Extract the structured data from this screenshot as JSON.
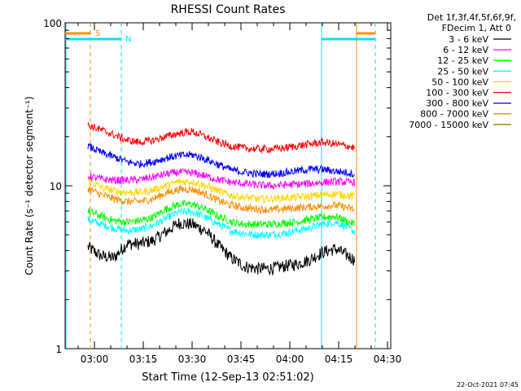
{
  "chart_data": {
    "type": "line",
    "title": "RHESSI Count Rates",
    "xlabel": "Start Time (12-Sep-13 02:51:02)",
    "ylabel": "Count Rate (s⁻¹ detector segment⁻¹)",
    "xlim": [
      "02:51",
      "04:31"
    ],
    "ylim": [
      1,
      100
    ],
    "yscale": "log",
    "x_ticks": [
      "03:00",
      "03:15",
      "03:30",
      "03:45",
      "04:00",
      "04:15",
      "04:30"
    ],
    "y_ticks": [
      "1",
      "10",
      "100"
    ],
    "grid": false,
    "legend_position": "outside-right",
    "legend_header": [
      "Det 1f,3f,4f,5f,6f,9f,",
      "FDecim 1, Att 0"
    ],
    "x_times": [
      "02:58",
      "03:02",
      "03:06",
      "03:10",
      "03:14",
      "03:18",
      "03:22",
      "03:26",
      "03:30",
      "03:34",
      "03:38",
      "03:42",
      "03:46",
      "03:50",
      "03:54",
      "03:58",
      "04:02",
      "04:06",
      "04:10",
      "04:14",
      "04:18",
      "04:20"
    ],
    "series": [
      {
        "name": "3 - 6 keV",
        "color": "#000000",
        "values": [
          4.2,
          3.7,
          3.6,
          4.4,
          4.4,
          4.6,
          5.2,
          5.9,
          5.8,
          5.3,
          4.3,
          3.6,
          3.2,
          3.1,
          3.1,
          3.2,
          3.3,
          3.5,
          3.9,
          4.1,
          3.7,
          3.5
        ]
      },
      {
        "name": "6 - 12 keV",
        "color": "#ff00ff",
        "values": [
          11.5,
          11.0,
          10.8,
          10.8,
          10.9,
          11.3,
          11.8,
          12.1,
          12.0,
          11.5,
          10.9,
          10.5,
          10.3,
          10.1,
          10.0,
          10.1,
          10.2,
          10.3,
          10.5,
          10.6,
          10.5,
          10.5
        ]
      },
      {
        "name": "12 - 25 keV",
        "color": "#00ff00",
        "values": [
          7.0,
          6.5,
          6.1,
          6.0,
          6.1,
          6.4,
          7.2,
          7.7,
          7.7,
          7.2,
          6.5,
          6.0,
          5.8,
          5.8,
          5.8,
          5.9,
          6.0,
          6.2,
          6.4,
          6.5,
          6.0,
          5.8
        ]
      },
      {
        "name": "25 - 50 keV",
        "color": "#00ffff",
        "values": [
          6.2,
          5.8,
          5.5,
          5.3,
          5.4,
          5.7,
          6.3,
          6.9,
          6.9,
          6.4,
          5.8,
          5.3,
          5.1,
          5.0,
          5.0,
          5.1,
          5.3,
          5.5,
          5.8,
          6.0,
          5.5,
          5.2
        ]
      },
      {
        "name": "50 - 100 keV",
        "color": "#ffd700",
        "values": [
          10.8,
          9.8,
          9.3,
          9.1,
          9.1,
          9.4,
          10.0,
          10.6,
          10.6,
          10.0,
          9.3,
          8.7,
          8.5,
          8.3,
          8.3,
          8.4,
          8.5,
          8.6,
          8.8,
          8.9,
          8.7,
          8.6
        ]
      },
      {
        "name": "100 - 300 keV",
        "color": "#ff0000",
        "values": [
          23.5,
          22.0,
          20.5,
          19.0,
          18.5,
          19.0,
          20.0,
          21.0,
          21.5,
          20.0,
          18.5,
          17.5,
          17.0,
          16.8,
          16.8,
          17.0,
          17.5,
          18.0,
          18.5,
          18.0,
          17.5,
          17.0
        ]
      },
      {
        "name": "300 - 800 keV",
        "color": "#0000ff",
        "values": [
          17.5,
          16.0,
          15.0,
          14.0,
          13.6,
          14.0,
          14.8,
          15.3,
          15.5,
          14.6,
          13.5,
          12.5,
          12.1,
          11.8,
          11.8,
          12.0,
          12.3,
          12.6,
          12.6,
          12.3,
          12.0,
          11.8
        ]
      },
      {
        "name": "800 - 7000 keV",
        "color": "#ff8c00",
        "values": [
          9.6,
          8.8,
          8.3,
          8.0,
          8.0,
          8.3,
          9.0,
          9.5,
          9.5,
          8.9,
          8.1,
          7.6,
          7.3,
          7.2,
          7.1,
          7.2,
          7.3,
          7.4,
          7.5,
          7.6,
          7.3,
          7.1
        ]
      },
      {
        "name": "7000 - 15000 keV",
        "color": "#8b8b00",
        "values": []
      }
    ],
    "annotations": [
      {
        "text": "S",
        "color": "#ff8c00"
      },
      {
        "text": "N",
        "color": "#00e5ff"
      }
    ]
  },
  "footer": {
    "timestamp": "22-Oct-2021 07:45"
  }
}
